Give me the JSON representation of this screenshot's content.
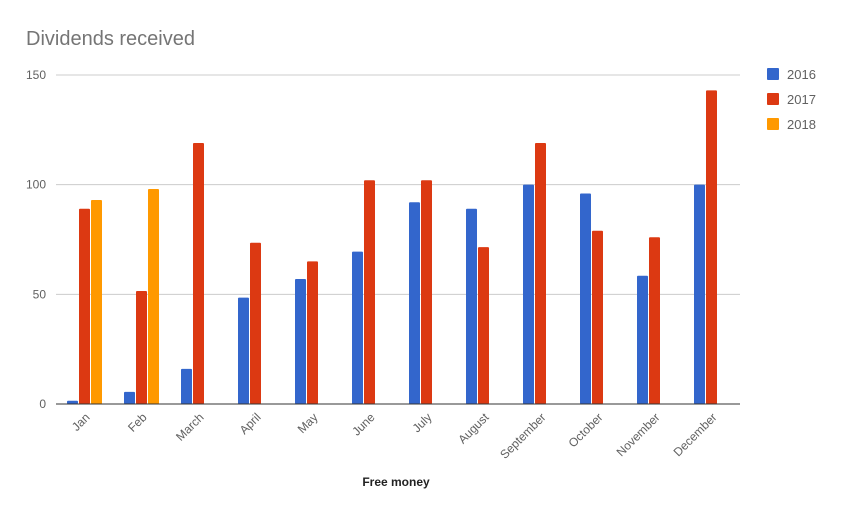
{
  "chart_data": {
    "type": "bar",
    "title": "Dividends received",
    "xlabel": "Free money",
    "ylabel": "",
    "ylim": [
      0,
      150
    ],
    "yticks": [
      0,
      50,
      100,
      150
    ],
    "grid": true,
    "legend_position": "right",
    "categories": [
      "Jan",
      "Feb",
      "March",
      "April",
      "May",
      "June",
      "July",
      "August",
      "September",
      "October",
      "November",
      "December"
    ],
    "series": [
      {
        "name": "2016",
        "color": "#3366cc",
        "values": [
          1.5,
          5.5,
          16,
          48.5,
          57,
          69.5,
          92,
          89,
          100,
          96,
          58.5,
          100
        ]
      },
      {
        "name": "2017",
        "color": "#dc3912",
        "values": [
          89,
          51.5,
          119,
          73.5,
          65,
          102,
          102,
          71.5,
          119,
          79,
          76,
          143
        ]
      },
      {
        "name": "2018",
        "color": "#ff9900",
        "values": [
          93,
          98,
          null,
          null,
          null,
          null,
          null,
          null,
          null,
          null,
          null,
          null
        ]
      }
    ]
  }
}
